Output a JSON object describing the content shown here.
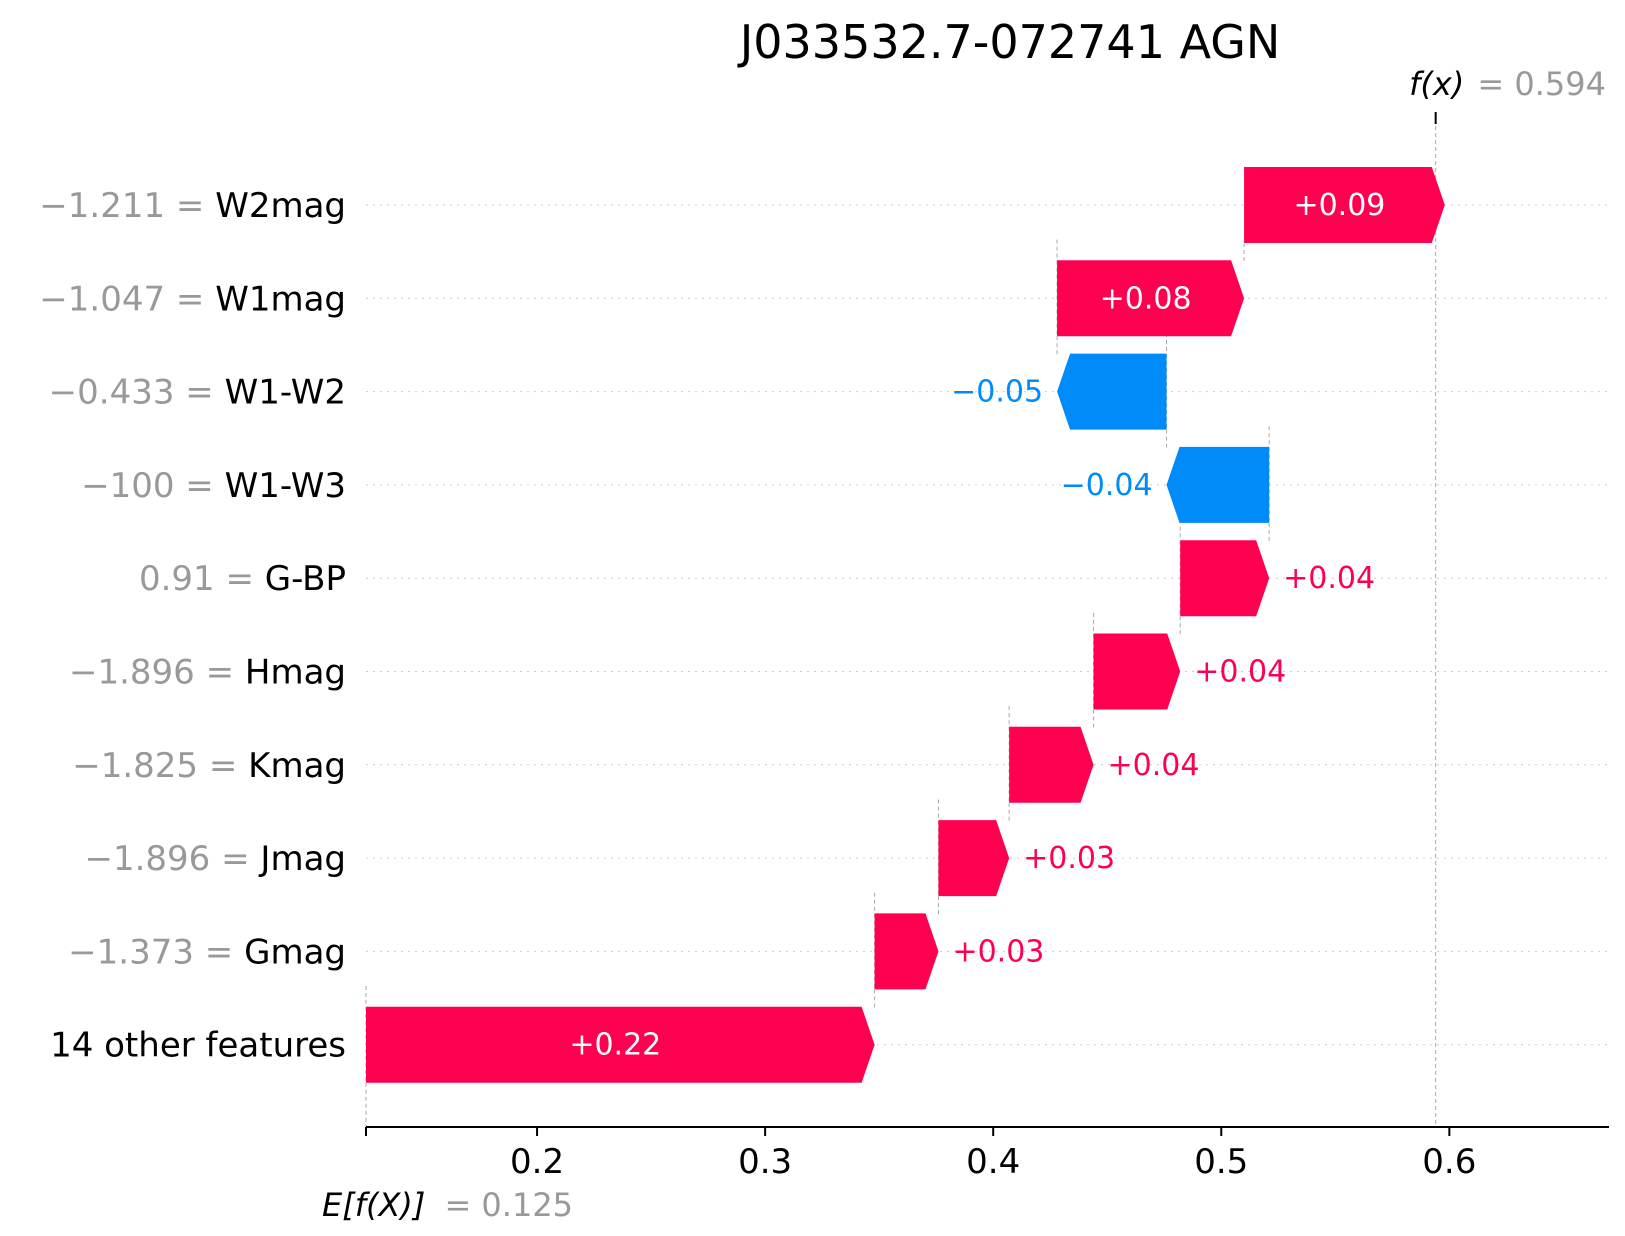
{
  "chart_data": {
    "type": "waterfall",
    "title": "J033532.7-072741 AGN",
    "base_value": 0.125,
    "base_label": "E[f(X)]",
    "base_value_text": "= 0.125",
    "output_value": 0.594,
    "output_label": "f(x)",
    "output_value_text": "= 0.594",
    "xlim": [
      0.125,
      0.67
    ],
    "xticks": [
      0.2,
      0.3,
      0.4,
      0.5,
      0.6
    ],
    "xtick_labels": [
      "0.2",
      "0.3",
      "0.4",
      "0.5",
      "0.6"
    ],
    "features": [
      {
        "name": "W2mag",
        "value_text": "−1.211 =",
        "contribution": 0.088,
        "label": "+0.09"
      },
      {
        "name": "W1mag",
        "value_text": "−1.047 =",
        "contribution": 0.082,
        "label": "+0.08"
      },
      {
        "name": "W1-W2",
        "value_text": "−0.433 =",
        "contribution": -0.048,
        "label": "−0.05"
      },
      {
        "name": "W1-W3",
        "value_text": "−100 =",
        "contribution": -0.045,
        "label": "−0.04"
      },
      {
        "name": "G-BP",
        "value_text": "0.91 =",
        "contribution": 0.039,
        "label": "+0.04"
      },
      {
        "name": "Hmag",
        "value_text": "−1.896 =",
        "contribution": 0.038,
        "label": "+0.04"
      },
      {
        "name": "Kmag",
        "value_text": "−1.825 =",
        "contribution": 0.037,
        "label": "+0.04"
      },
      {
        "name": "Jmag",
        "value_text": "−1.896 =",
        "contribution": 0.031,
        "label": "+0.03"
      },
      {
        "name": "Gmag",
        "value_text": "−1.373 =",
        "contribution": 0.028,
        "label": "+0.03"
      },
      {
        "name": "14 other features",
        "value_text": "",
        "contribution": 0.223,
        "label": "+0.22"
      }
    ],
    "colors": {
      "positive": "#ff0051",
      "negative": "#008bfb",
      "label_inside": "#ffffff"
    },
    "grid": true
  }
}
